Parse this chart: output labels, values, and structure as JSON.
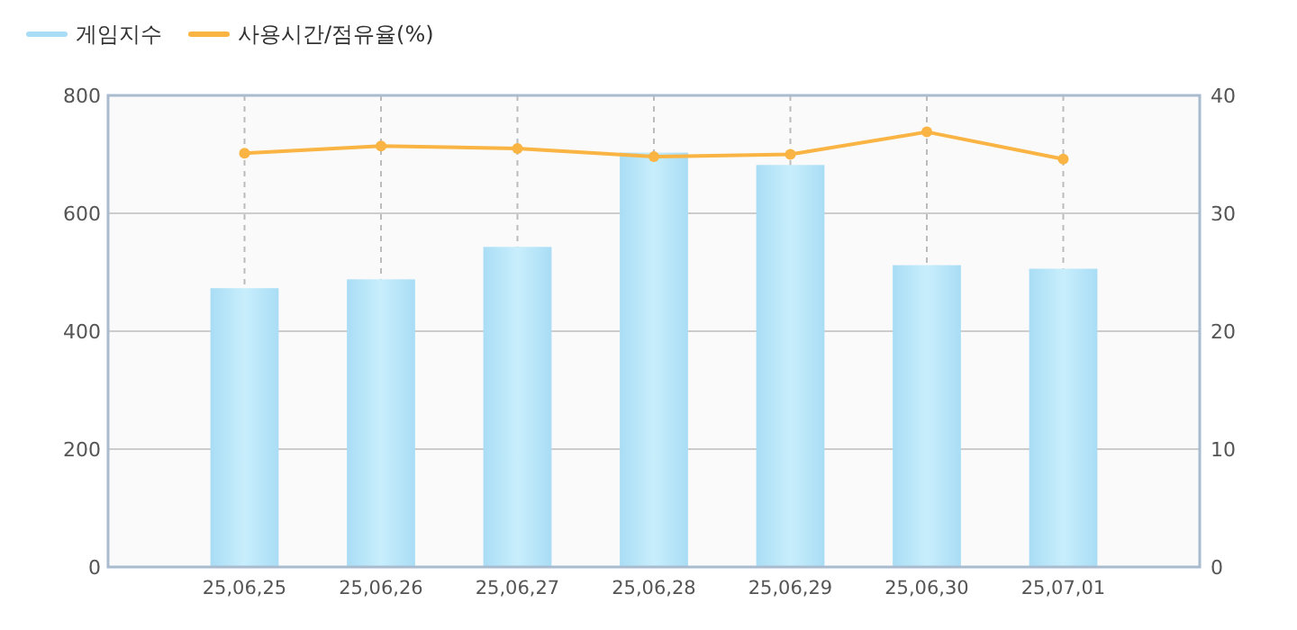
{
  "chart_data": {
    "type": "bar",
    "categories": [
      "25,06,25",
      "25,06,26",
      "25,06,27",
      "25,06,28",
      "25,06,29",
      "25,06,30",
      "25,07,01"
    ],
    "series": [
      {
        "name": "게임지수",
        "color": "#a9ddf5",
        "values": [
          473,
          488,
          543,
          703,
          682,
          512,
          506
        ]
      },
      {
        "name": "사용시간/점유율(%)",
        "type": "line",
        "axis": "y2",
        "color": "#f9b443",
        "values": [
          35.1,
          35.7,
          35.5,
          34.8,
          35.0,
          36.9,
          34.6
        ]
      }
    ],
    "ylim": [
      0,
      800
    ],
    "yticks": [
      0,
      200,
      400,
      600,
      800
    ],
    "y2lim": [
      0,
      40
    ],
    "y2ticks": [
      0,
      10,
      20,
      30,
      40
    ],
    "grid": true,
    "legend": "top left",
    "marker": "circle"
  }
}
